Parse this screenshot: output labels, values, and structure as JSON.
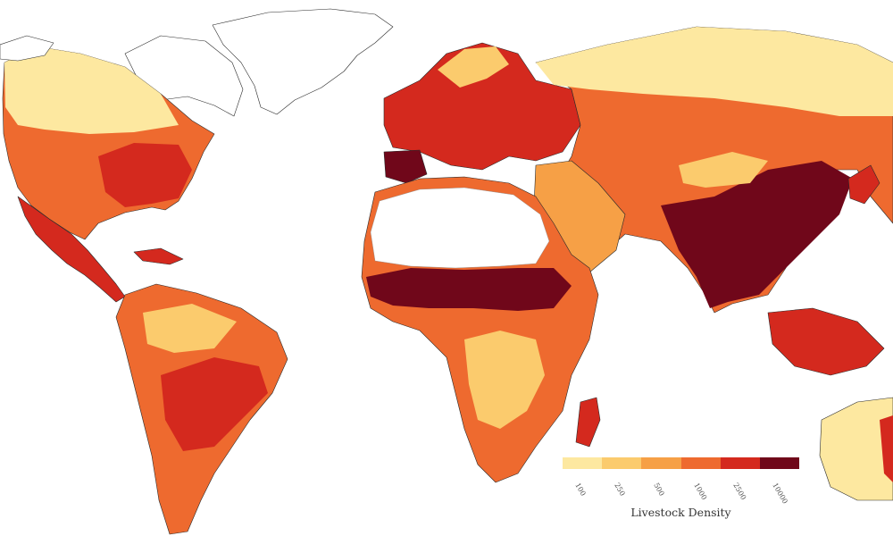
{
  "map": {
    "colors": {
      "ocean": "#ffffff",
      "no_data": "#ffffff",
      "border": "#2b2b2b"
    }
  },
  "legend": {
    "title": "Livestock Density",
    "ticks": [
      "100",
      "250",
      "500",
      "1000",
      "2500",
      "10000"
    ],
    "colors": [
      "#fde8a0",
      "#fbcb6d",
      "#f6a046",
      "#ee6a2f",
      "#d4291e",
      "#70071a"
    ]
  }
}
